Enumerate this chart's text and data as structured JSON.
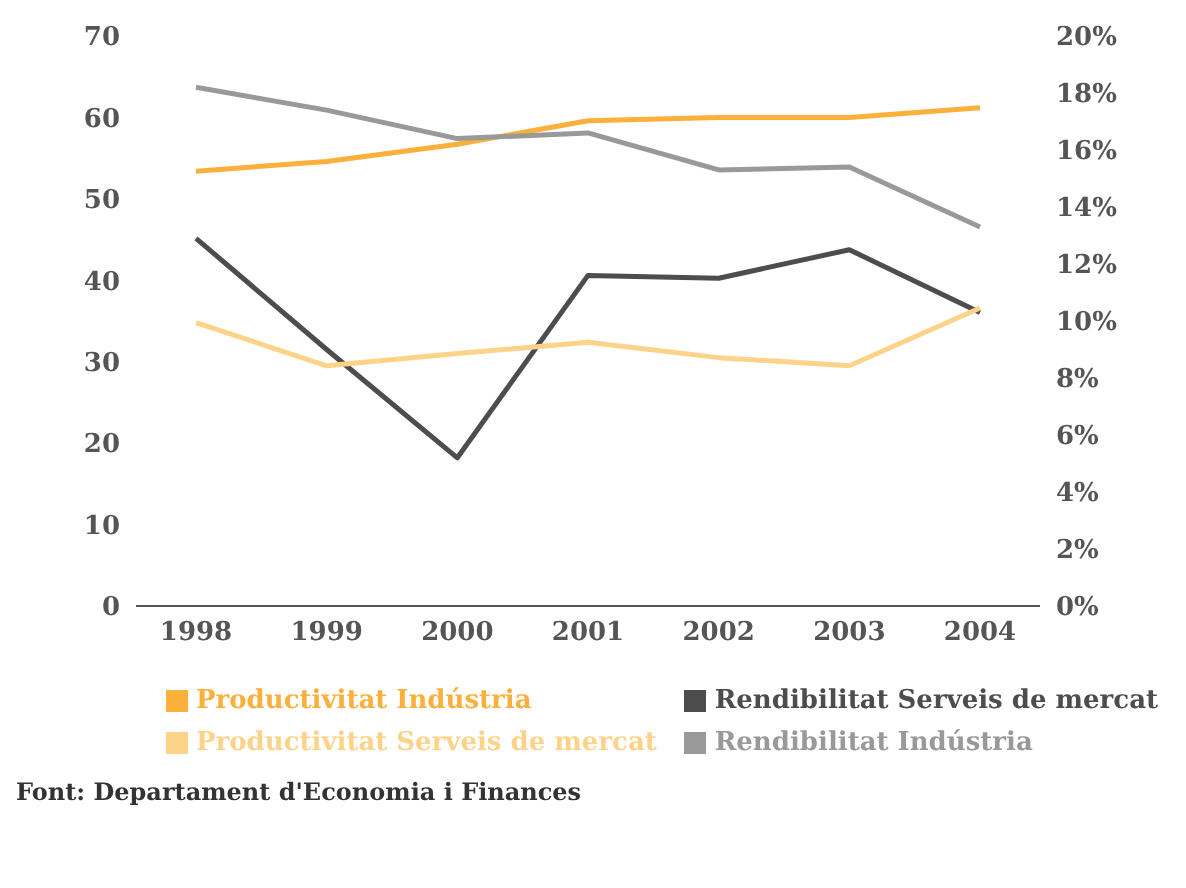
{
  "chart_data": {
    "type": "line",
    "categories": [
      "1998",
      "1999",
      "2000",
      "2001",
      "2002",
      "2003",
      "2004"
    ],
    "series": [
      {
        "name": "Productivitat Indústria",
        "color": "#fbb03b",
        "values": [
          53.4,
          54.6,
          56.7,
          59.6,
          60,
          60,
          61.2
        ]
      },
      {
        "name": "Rendibilitat Serveis de mercat",
        "color": "#4d4d4d",
        "axis": "y2",
        "values": [
          12.9,
          9.0,
          5.2,
          11.6,
          11.5,
          12.5,
          10.3
        ]
      },
      {
        "name": "Productivitat Serveis de mercat",
        "color": "#fdd38a",
        "values": [
          34.8,
          29.5,
          31,
          32.4,
          30.5,
          29.5,
          36.6
        ]
      },
      {
        "name": "Rendibilitat Indústria",
        "color": "#999999",
        "axis": "y2",
        "values": [
          18.2,
          17.4,
          16.4,
          16.6,
          15.3,
          15.4,
          13.3
        ]
      }
    ],
    "ylim": [
      0,
      70
    ],
    "yticks": [
      0,
      10,
      20,
      30,
      40,
      50,
      60,
      70
    ],
    "y2lim": [
      0,
      20
    ],
    "y2ticks": [
      {
        "value": 0,
        "label": "0%"
      },
      {
        "value": 2,
        "label": "2%"
      },
      {
        "value": 4,
        "label": "4%"
      },
      {
        "value": 6,
        "label": "6%"
      },
      {
        "value": 8,
        "label": "8%"
      },
      {
        "value": 10,
        "label": "10%"
      },
      {
        "value": 12,
        "label": "12%"
      },
      {
        "value": 14,
        "label": "14%"
      },
      {
        "value": 16,
        "label": "16%"
      },
      {
        "value": 18,
        "label": "18%"
      },
      {
        "value": 20,
        "label": "20%"
      }
    ],
    "grid": false,
    "legend": "bottom",
    "marker": "none",
    "line_style": "solid",
    "annotations": [
      "Font: Departament d'Economia i Finances"
    ]
  }
}
